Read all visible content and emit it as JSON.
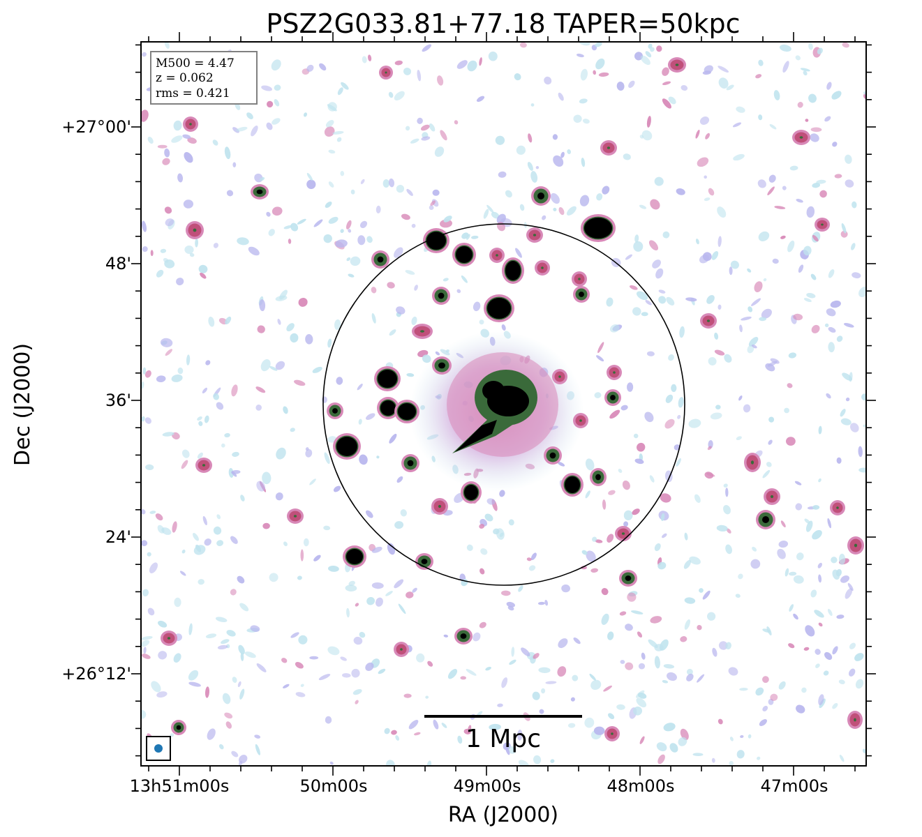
{
  "title": "PSZ2G033.81+77.18 TAPER=50kpc",
  "info_box": {
    "lines": [
      "M500 = 4.47",
      "z = 0.062",
      "rms = 0.421"
    ]
  },
  "axes": {
    "xlabel": "RA (J2000)",
    "ylabel": "Dec (J2000)",
    "xticks": [
      "13h51m00s",
      "50m00s",
      "49m00s",
      "48m00s",
      "47m00s"
    ],
    "yticks": [
      "+27°00'",
      "48'",
      "36'",
      "24'",
      "+26°12'"
    ]
  },
  "scale_bar": {
    "label": "1 Mpc"
  },
  "colors": {
    "faint_noise": "#bfe3ee",
    "faint_lilac": "#b9b7ee",
    "mid_pink": "#d889b8",
    "mid_red": "#c0507a",
    "bright_green": "#3a6a3a",
    "peak": "#000000",
    "beam": "#1f77b4"
  }
}
